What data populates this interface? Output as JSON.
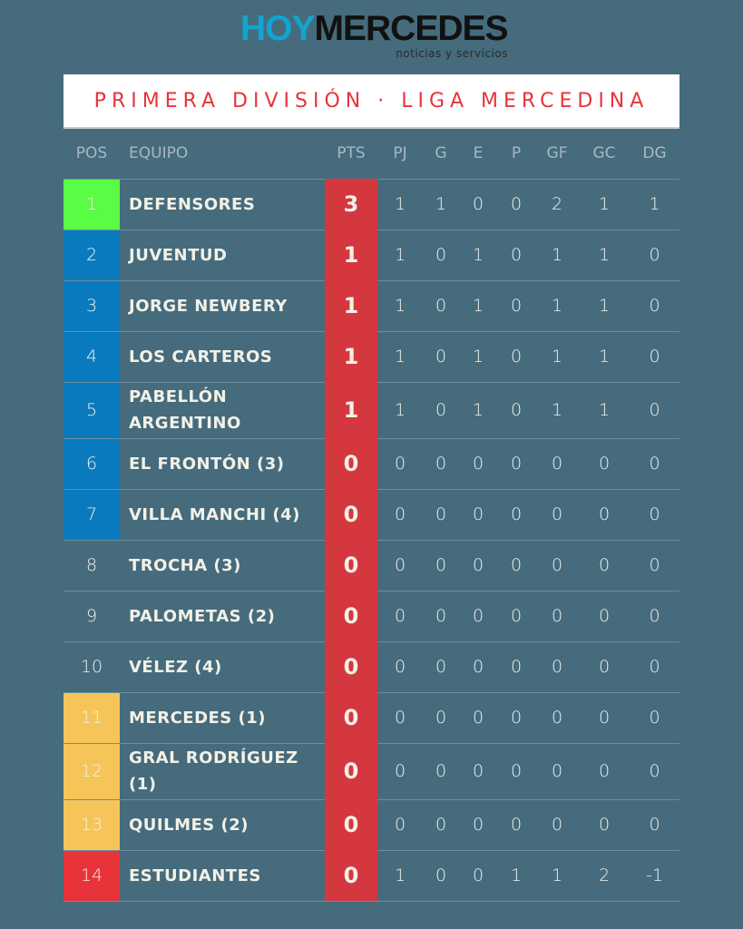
{
  "brand": {
    "hoy": "HOY",
    "mercedes": "MERCEDES",
    "tagline": "noticias y servicios"
  },
  "title": "PRIMERA DIVISIÓN · LIGA MERCEDINA",
  "colors": {
    "background": "#456b7d",
    "points": "#d5373f",
    "title": "#e8333a",
    "green": "#5afc46",
    "blue": "#0a7abf",
    "yellow": "#f5c55a",
    "red": "#e8333a"
  },
  "headers": [
    "POS",
    "EQUIPO",
    "PTS",
    "PJ",
    "G",
    "E",
    "P",
    "GF",
    "GC",
    "DG"
  ],
  "rows": [
    {
      "pos": "1",
      "team": "DEFENSORES",
      "pts": "3",
      "pj": "1",
      "g": "1",
      "e": "0",
      "p": "0",
      "gf": "2",
      "gc": "1",
      "dg": "1",
      "zone": "#5afc46"
    },
    {
      "pos": "2",
      "team": "JUVENTUD",
      "pts": "1",
      "pj": "1",
      "g": "0",
      "e": "1",
      "p": "0",
      "gf": "1",
      "gc": "1",
      "dg": "0",
      "zone": "#0a7abf"
    },
    {
      "pos": "3",
      "team": "JORGE NEWBERY",
      "pts": "1",
      "pj": "1",
      "g": "0",
      "e": "1",
      "p": "0",
      "gf": "1",
      "gc": "1",
      "dg": "0",
      "zone": "#0a7abf"
    },
    {
      "pos": "4",
      "team": "LOS CARTEROS",
      "pts": "1",
      "pj": "1",
      "g": "0",
      "e": "1",
      "p": "0",
      "gf": "1",
      "gc": "1",
      "dg": "0",
      "zone": "#0a7abf"
    },
    {
      "pos": "5",
      "team": "PABELLÓN ARGENTINO",
      "pts": "1",
      "pj": "1",
      "g": "0",
      "e": "1",
      "p": "0",
      "gf": "1",
      "gc": "1",
      "dg": "0",
      "zone": "#0a7abf",
      "tall": true
    },
    {
      "pos": "6",
      "team": "EL FRONTÓN (3)",
      "pts": "0",
      "pj": "0",
      "g": "0",
      "e": "0",
      "p": "0",
      "gf": "0",
      "gc": "0",
      "dg": "0",
      "zone": "#0a7abf"
    },
    {
      "pos": "7",
      "team": "VILLA MANCHI (4)",
      "pts": "0",
      "pj": "0",
      "g": "0",
      "e": "0",
      "p": "0",
      "gf": "0",
      "gc": "0",
      "dg": "0",
      "zone": "#0a7abf"
    },
    {
      "pos": "8",
      "team": "TROCHA (3)",
      "pts": "0",
      "pj": "0",
      "g": "0",
      "e": "0",
      "p": "0",
      "gf": "0",
      "gc": "0",
      "dg": "0",
      "zone": ""
    },
    {
      "pos": "9",
      "team": "PALOMETAS (2)",
      "pts": "0",
      "pj": "0",
      "g": "0",
      "e": "0",
      "p": "0",
      "gf": "0",
      "gc": "0",
      "dg": "0",
      "zone": ""
    },
    {
      "pos": "10",
      "team": "VÉLEZ (4)",
      "pts": "0",
      "pj": "0",
      "g": "0",
      "e": "0",
      "p": "0",
      "gf": "0",
      "gc": "0",
      "dg": "0",
      "zone": ""
    },
    {
      "pos": "11",
      "team": "MERCEDES (1)",
      "pts": "0",
      "pj": "0",
      "g": "0",
      "e": "0",
      "p": "0",
      "gf": "0",
      "gc": "0",
      "dg": "0",
      "zone": "#f5c55a"
    },
    {
      "pos": "12",
      "team": "GRAL RODRÍGUEZ (1)",
      "pts": "0",
      "pj": "0",
      "g": "0",
      "e": "0",
      "p": "0",
      "gf": "0",
      "gc": "0",
      "dg": "0",
      "zone": "#f5c55a",
      "tall": true
    },
    {
      "pos": "13",
      "team": "QUILMES (2)",
      "pts": "0",
      "pj": "0",
      "g": "0",
      "e": "0",
      "p": "0",
      "gf": "0",
      "gc": "0",
      "dg": "0",
      "zone": "#f5c55a"
    },
    {
      "pos": "14",
      "team": "ESTUDIANTES",
      "pts": "0",
      "pj": "1",
      "g": "0",
      "e": "0",
      "p": "1",
      "gf": "1",
      "gc": "2",
      "dg": "-1",
      "zone": "#e8333a"
    }
  ]
}
